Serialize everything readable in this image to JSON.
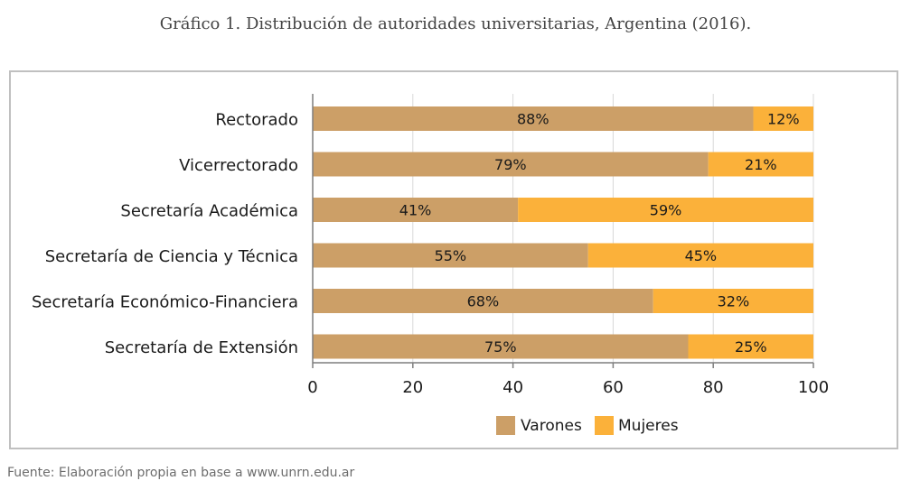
{
  "title": "Gráfico 1. Distribución de autoridades universitarias, Argentina (2016).",
  "source": "Fuente: Elaboración propia en base a www.unrn.edu.ar",
  "colors": {
    "varones": "#cc9f67",
    "mujeres": "#fbb13a",
    "grid": "#d9d9d9",
    "axis": "#7f7f7f",
    "text": "#1a1a1a"
  },
  "chart_data": {
    "type": "bar",
    "orientation": "horizontal",
    "stacked": true,
    "categories": [
      "Rectorado",
      "Vicerrectorado",
      "Secretaría Académica",
      "Secretaría de Ciencia y Técnica",
      "Secretaría Económico-Financiera",
      "Secretaría de Extensión"
    ],
    "series": [
      {
        "name": "Varones",
        "values": [
          88,
          79,
          41,
          55,
          68,
          75
        ],
        "labels": [
          "88%",
          "79%",
          "41%",
          "55%",
          "68%",
          "75%"
        ]
      },
      {
        "name": "Mujeres",
        "values": [
          12,
          21,
          59,
          45,
          32,
          25
        ],
        "labels": [
          "12%",
          "21%",
          "59%",
          "45%",
          "32%",
          "25%"
        ]
      }
    ],
    "xlim": [
      0,
      100
    ],
    "xticks": [
      0,
      20,
      40,
      60,
      80,
      100
    ],
    "grid": true,
    "legend": "bottom-center"
  }
}
